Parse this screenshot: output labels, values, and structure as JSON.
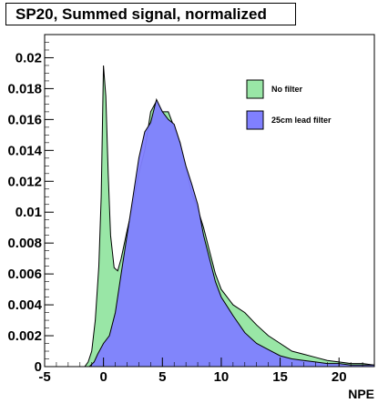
{
  "chart_data": {
    "type": "histogram",
    "title": "SP20, Summed signal, normalized",
    "xlabel": "NPE",
    "ylabel": "",
    "xlim": [
      -5,
      23
    ],
    "ylim": [
      0,
      0.0215
    ],
    "x_ticks": [
      -5,
      0,
      5,
      10,
      15,
      20
    ],
    "y_ticks": [
      0,
      0.002,
      0.004,
      0.006,
      0.008,
      0.01,
      0.012,
      0.014,
      0.016,
      0.018,
      0.02
    ],
    "y_tick_labels": [
      "0",
      "0.002",
      "0.004",
      "0.006",
      "0.008",
      "0.01",
      "0.012",
      "0.014",
      "0.016",
      "0.018",
      "0.02"
    ],
    "x_tick_labels": [
      "-5",
      "0",
      "5",
      "10",
      "15",
      "20"
    ],
    "legend_position": "top-right",
    "series": [
      {
        "name": "No filter",
        "color": "#99e6a6",
        "points": [
          [
            -5,
            0
          ],
          [
            -1.6,
            0
          ],
          [
            -1.3,
            0.0003
          ],
          [
            -1.0,
            0.001
          ],
          [
            -0.7,
            0.003
          ],
          [
            -0.4,
            0.0065
          ],
          [
            -0.2,
            0.011
          ],
          [
            0,
            0.0195
          ],
          [
            0.2,
            0.0175
          ],
          [
            0.4,
            0.0125
          ],
          [
            0.6,
            0.0085
          ],
          [
            0.9,
            0.0064
          ],
          [
            1.2,
            0.0062
          ],
          [
            1.5,
            0.007
          ],
          [
            2,
            0.0088
          ],
          [
            2.5,
            0.0105
          ],
          [
            3,
            0.0125
          ],
          [
            3.5,
            0.014
          ],
          [
            4,
            0.0165
          ],
          [
            4.5,
            0.0172
          ],
          [
            5,
            0.0165
          ],
          [
            5.5,
            0.0165
          ],
          [
            6,
            0.0155
          ],
          [
            6.5,
            0.0145
          ],
          [
            7,
            0.0128
          ],
          [
            7.5,
            0.0112
          ],
          [
            8,
            0.0102
          ],
          [
            8.5,
            0.009
          ],
          [
            9,
            0.0075
          ],
          [
            9.5,
            0.006
          ],
          [
            10,
            0.005
          ],
          [
            11,
            0.004
          ],
          [
            12,
            0.0035
          ],
          [
            13,
            0.0027
          ],
          [
            14,
            0.002
          ],
          [
            15,
            0.0015
          ],
          [
            16,
            0.001
          ],
          [
            17,
            0.0008
          ],
          [
            18,
            0.0006
          ],
          [
            19,
            0.0004
          ],
          [
            20,
            0.0003
          ],
          [
            21,
            0.0002
          ],
          [
            22,
            0.0002
          ],
          [
            23,
            0.0001
          ]
        ]
      },
      {
        "name": "25cm lead filter",
        "color": "#8080ff",
        "points": [
          [
            -5,
            0
          ],
          [
            -1.2,
            0
          ],
          [
            -0.8,
            0.0003
          ],
          [
            -0.5,
            0.0008
          ],
          [
            0,
            0.0015
          ],
          [
            0.5,
            0.002
          ],
          [
            1,
            0.0035
          ],
          [
            1.5,
            0.006
          ],
          [
            2,
            0.0085
          ],
          [
            2.5,
            0.011
          ],
          [
            3,
            0.0135
          ],
          [
            3.5,
            0.0152
          ],
          [
            4,
            0.0158
          ],
          [
            4.5,
            0.0173
          ],
          [
            5,
            0.0165
          ],
          [
            5.5,
            0.016
          ],
          [
            6,
            0.0157
          ],
          [
            6.5,
            0.0145
          ],
          [
            7,
            0.013
          ],
          [
            7.5,
            0.0118
          ],
          [
            8,
            0.0105
          ],
          [
            8.5,
            0.0085
          ],
          [
            9,
            0.007
          ],
          [
            9.5,
            0.0055
          ],
          [
            10,
            0.0045
          ],
          [
            11,
            0.0033
          ],
          [
            12,
            0.0022
          ],
          [
            13,
            0.0015
          ],
          [
            14,
            0.0011
          ],
          [
            15,
            0.0007
          ],
          [
            16,
            0.0005
          ],
          [
            17,
            0.0004
          ],
          [
            18,
            0.0003
          ],
          [
            19,
            0.0002
          ],
          [
            20,
            0.0002
          ],
          [
            21,
            0.0001
          ],
          [
            22,
            0.0001
          ],
          [
            23,
            0.0001
          ]
        ]
      }
    ]
  }
}
